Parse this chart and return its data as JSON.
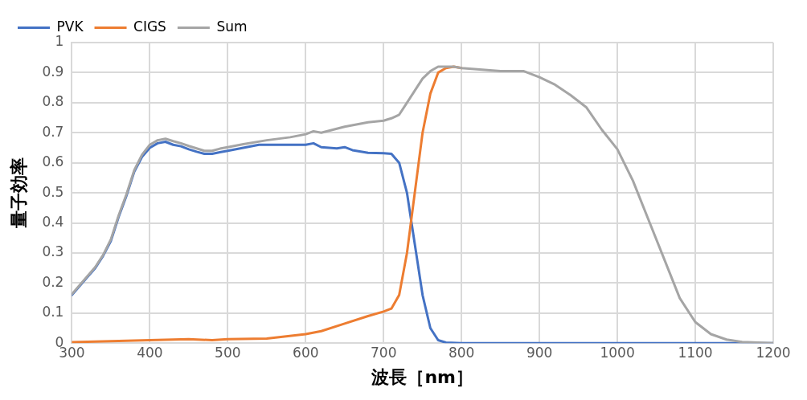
{
  "chart_data": {
    "type": "line",
    "xlabel": "波長［nm］",
    "ylabel": "量子効率",
    "xlim": [
      300,
      1200
    ],
    "xticks": [
      300,
      400,
      500,
      600,
      700,
      800,
      900,
      1000,
      1100,
      1200
    ],
    "ylim": [
      0,
      1
    ],
    "yticks": [
      0,
      0.1,
      0.2,
      0.3,
      0.4,
      0.5,
      0.6,
      0.7,
      0.8,
      0.9,
      1
    ],
    "grid": true,
    "legend": "top left",
    "marker": "none",
    "line_style": "solid",
    "series": [
      {
        "name": "PVK",
        "color": "#4472c4",
        "x": [
          300,
          310,
          320,
          330,
          340,
          350,
          360,
          370,
          380,
          390,
          400,
          410,
          420,
          430,
          440,
          450,
          460,
          470,
          480,
          490,
          500,
          520,
          540,
          560,
          580,
          600,
          610,
          620,
          640,
          650,
          660,
          680,
          700,
          710,
          720,
          730,
          740,
          750,
          760,
          770,
          780,
          800,
          1200
        ],
        "values": [
          0.16,
          0.19,
          0.22,
          0.25,
          0.29,
          0.34,
          0.42,
          0.49,
          0.57,
          0.62,
          0.65,
          0.665,
          0.67,
          0.66,
          0.655,
          0.645,
          0.637,
          0.63,
          0.63,
          0.635,
          0.64,
          0.65,
          0.66,
          0.66,
          0.66,
          0.66,
          0.665,
          0.652,
          0.648,
          0.652,
          0.642,
          0.633,
          0.632,
          0.63,
          0.6,
          0.5,
          0.33,
          0.16,
          0.05,
          0.01,
          0.002,
          0,
          0
        ]
      },
      {
        "name": "CIGS",
        "color": "#ed7d31",
        "x": [
          300,
          400,
          450,
          480,
          500,
          550,
          600,
          620,
          650,
          680,
          700,
          710,
          720,
          730,
          740,
          750,
          760,
          770,
          780,
          790,
          800
        ],
        "values": [
          0.003,
          0.01,
          0.013,
          0.01,
          0.013,
          0.015,
          0.03,
          0.04,
          0.065,
          0.09,
          0.105,
          0.115,
          0.16,
          0.3,
          0.5,
          0.7,
          0.83,
          0.9,
          0.915,
          0.92,
          0.915
        ]
      },
      {
        "name": "Sum",
        "color": "#a5a5a5",
        "x": [
          300,
          310,
          320,
          330,
          340,
          350,
          360,
          370,
          380,
          390,
          400,
          410,
          420,
          430,
          440,
          450,
          460,
          470,
          480,
          490,
          500,
          520,
          550,
          580,
          600,
          610,
          620,
          650,
          680,
          700,
          710,
          720,
          730,
          740,
          750,
          760,
          770,
          780,
          790,
          800,
          850,
          880,
          900,
          920,
          940,
          960,
          980,
          1000,
          1020,
          1040,
          1060,
          1080,
          1100,
          1120,
          1140,
          1160,
          1200
        ],
        "values": [
          0.163,
          0.193,
          0.223,
          0.253,
          0.293,
          0.345,
          0.425,
          0.495,
          0.575,
          0.627,
          0.66,
          0.675,
          0.68,
          0.672,
          0.665,
          0.656,
          0.648,
          0.64,
          0.64,
          0.647,
          0.652,
          0.662,
          0.675,
          0.685,
          0.695,
          0.705,
          0.7,
          0.72,
          0.735,
          0.74,
          0.748,
          0.76,
          0.8,
          0.84,
          0.88,
          0.905,
          0.92,
          0.92,
          0.92,
          0.915,
          0.905,
          0.905,
          0.885,
          0.86,
          0.825,
          0.785,
          0.71,
          0.645,
          0.54,
          0.41,
          0.28,
          0.15,
          0.07,
          0.03,
          0.012,
          0.004,
          0
        ]
      }
    ]
  }
}
